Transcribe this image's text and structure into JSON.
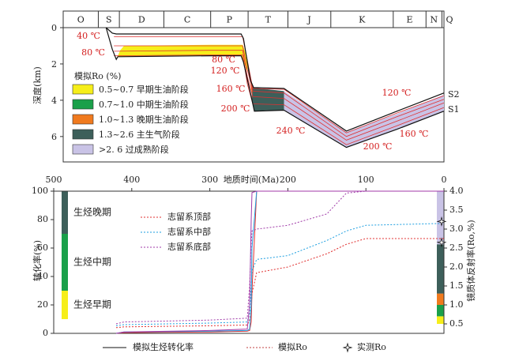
{
  "chart_data": [
    {
      "type": "burial",
      "ylabel": "深度(km)",
      "xlim": [
        488,
        0
      ],
      "ylim": [
        0,
        7.4
      ],
      "yticks": [
        0,
        2,
        4,
        6
      ],
      "periods": [
        {
          "name": "O",
          "start": 488,
          "end": 443
        },
        {
          "name": "S",
          "start": 443,
          "end": 416
        },
        {
          "name": "D",
          "start": 416,
          "end": 359
        },
        {
          "name": "C",
          "start": 359,
          "end": 299
        },
        {
          "name": "P",
          "start": 299,
          "end": 251
        },
        {
          "name": "T",
          "start": 251,
          "end": 200
        },
        {
          "name": "J",
          "start": 200,
          "end": 145
        },
        {
          "name": "K",
          "start": 145,
          "end": 65
        },
        {
          "name": "E",
          "start": 65,
          "end": 23
        },
        {
          "name": "N",
          "start": 23,
          "end": 2.6
        },
        {
          "name": "Q",
          "start": 2.6,
          "end": 0
        }
      ],
      "zones": [
        {
          "color": "#c9c3e6",
          "ma": [
            225,
            205,
            125,
            60,
            0,
            0,
            60,
            125,
            205,
            225
          ],
          "depth": [
            3.4,
            3.5,
            5.75,
            4.75,
            3.7,
            4.6,
            5.6,
            6.6,
            4.55,
            4.55
          ]
        },
        {
          "color": "#3d5f5a",
          "ma": [
            247,
            244,
            225,
            205,
            205,
            225,
            243,
            246
          ],
          "depth": [
            3.0,
            3.3,
            3.4,
            3.5,
            4.55,
            4.55,
            4.6,
            4.0
          ]
        },
        {
          "color": "#f07a1e",
          "ma": [
            249,
            247,
            246,
            245,
            247
          ],
          "depth": [
            2.6,
            3.0,
            3.3,
            3.9,
            3.4
          ]
        },
        {
          "color": "#1aa04a",
          "ma": [
            252,
            249,
            247,
            248,
            251
          ],
          "depth": [
            2.0,
            2.6,
            3.4,
            3.0,
            2.4
          ]
        },
        {
          "color": "#f6ee1a",
          "ma": [
            420,
            415,
            410,
            300,
            258,
            254,
            251,
            252,
            257,
            260,
            300,
            418
          ],
          "depth": [
            1.75,
            1.25,
            1.0,
            0.95,
            0.95,
            1.4,
            2.0,
            2.4,
            1.9,
            1.55,
            1.55,
            1.6
          ]
        }
      ],
      "outlines": [
        {
          "ma": [
            433,
            425,
            420,
            300,
            260,
            257,
            248,
            244,
            205,
            125,
            60,
            0
          ],
          "depth": [
            0,
            0.3,
            0.35,
            0.35,
            0.35,
            0.6,
            2.9,
            3.3,
            3.35,
            5.7,
            4.6,
            3.6
          ]
        },
        {
          "ma": [
            433,
            425,
            420,
            418,
            300,
            260,
            257,
            246,
            243,
            205,
            125,
            60,
            0
          ],
          "depth": [
            0,
            1.2,
            1.75,
            1.6,
            1.55,
            1.55,
            1.9,
            4.0,
            4.6,
            4.55,
            6.6,
            5.6,
            4.6
          ]
        }
      ],
      "isotherm_color": "#e03030",
      "isotherms": [
        {
          "ma": [
            423,
            300,
            258,
            252,
            245,
            205,
            125,
            60,
            0
          ],
          "depth": [
            0.5,
            0.5,
            0.5,
            1.8,
            3.35,
            3.4,
            5.8,
            4.7,
            3.75
          ]
        },
        {
          "ma": [
            423,
            300,
            258,
            252,
            245,
            205,
            125,
            60,
            0
          ],
          "depth": [
            1.0,
            1.0,
            1.0,
            2.3,
            3.5,
            3.6,
            6.0,
            4.9,
            3.95
          ]
        },
        {
          "ma": [
            423,
            300,
            258,
            252,
            245,
            205,
            125,
            60,
            0
          ],
          "depth": [
            1.3,
            1.25,
            1.25,
            2.7,
            3.8,
            3.9,
            6.2,
            5.15,
            4.15
          ]
        },
        {
          "ma": [
            423,
            300,
            258,
            252,
            245,
            205,
            125,
            60,
            0
          ],
          "depth": [
            1.55,
            1.5,
            1.5,
            3.1,
            4.2,
            4.25,
            6.45,
            5.4,
            4.4
          ]
        }
      ],
      "annotations": [
        "40 ℃",
        "80 ℃",
        "80 ℃",
        "120 ℃",
        "160 ℃",
        "200 ℃",
        "240 ℃",
        "200 ℃",
        "160 ℃",
        "120 ℃"
      ],
      "layer_labels": [
        "S2",
        "S1"
      ],
      "legend": {
        "title": "模拟Ro (%)",
        "items": [
          {
            "label": "0.5~0.7 早期生油阶段",
            "color": "#f6ee1a"
          },
          {
            "label": "0.7~1.0 中期生油阶段",
            "color": "#1aa04a"
          },
          {
            "label": "1.0~1.3 晚期生油阶段",
            "color": "#f07a1e"
          },
          {
            "label": "1.3~2.6 主生气阶段",
            "color": "#3d5f5a"
          },
          {
            "label": ">2. 6 过成熟阶段",
            "color": "#c9c3e6"
          }
        ]
      }
    },
    {
      "type": "line",
      "xlabel": "地质时间(Ma)",
      "ylabel": "转化率(%)",
      "y2label": "镜质体反射率(Ro,%)",
      "xlim": [
        500,
        0
      ],
      "xticks": [
        500,
        400,
        300,
        200,
        100,
        0
      ],
      "ylim": [
        0,
        100
      ],
      "yticks": [
        0,
        20,
        40,
        60,
        80,
        100
      ],
      "y2lim": [
        0.25,
        4.0
      ],
      "y2ticks": [
        0.5,
        {
          "value": 1,
          "label": "1.0"
        },
        1.5,
        {
          "value": 2,
          "label": "2.0"
        },
        2.5,
        {
          "value": 3,
          "label": "3.0"
        },
        3.5,
        {
          "value": 4,
          "label": "4.0"
        }
      ],
      "stage_bands": [
        {
          "label": "生烃早期",
          "range": [
            10,
            30
          ],
          "color": "#f6ee1a"
        },
        {
          "label": "生烃中期",
          "range": [
            30,
            70
          ],
          "color": "#1aa04a"
        },
        {
          "label": "生烃晚期",
          "range": [
            70,
            100
          ],
          "color": "#3d5f5a"
        }
      ],
      "ro_bands": [
        {
          "range": [
            0.5,
            0.7
          ],
          "color": "#f6ee1a"
        },
        {
          "range": [
            0.7,
            1.0
          ],
          "color": "#1aa04a"
        },
        {
          "range": [
            1.0,
            1.3
          ],
          "color": "#f07a1e"
        },
        {
          "range": [
            1.3,
            2.6
          ],
          "color": "#3d5f5a"
        },
        {
          "range": [
            2.6,
            4.0
          ],
          "color": "#c9c3e6"
        }
      ],
      "series": [
        {
          "name": "志留系顶部",
          "color": "#e03030",
          "x": [
            420,
            410,
            300,
            252,
            249,
            247,
            246,
            240,
            200,
            150,
            125,
            100,
            0
          ],
          "conversion": [
            0,
            0.5,
            1,
            1.5,
            2,
            8,
            30,
            100,
            100,
            100,
            100,
            100,
            100
          ],
          "ro": [
            0.4,
            0.42,
            0.45,
            0.47,
            0.6,
            0.9,
            1.3,
            1.85,
            2.0,
            2.35,
            2.6,
            2.75,
            2.75
          ]
        },
        {
          "name": "志留系中部",
          "color": "#1e9fe0",
          "x": [
            420,
            410,
            300,
            252,
            249,
            247,
            246,
            240,
            200,
            150,
            125,
            100,
            0
          ],
          "conversion": [
            0,
            1,
            1.5,
            2,
            3,
            20,
            60,
            100,
            100,
            100,
            100,
            100,
            100
          ],
          "ro": [
            0.45,
            0.48,
            0.52,
            0.55,
            0.8,
            1.5,
            1.9,
            2.2,
            2.3,
            2.7,
            2.95,
            3.1,
            3.15
          ]
        },
        {
          "name": "志留系底部",
          "color": "#a03aa8",
          "x": [
            420,
            410,
            300,
            252,
            249,
            247,
            246,
            240,
            200,
            150,
            125,
            100,
            0
          ],
          "conversion": [
            0,
            1,
            2,
            3,
            20,
            80,
            99,
            100,
            100,
            100,
            100,
            100,
            100
          ],
          "ro": [
            0.5,
            0.55,
            0.6,
            0.65,
            1.5,
            2.6,
            2.95,
            3.0,
            3.1,
            3.4,
            3.95,
            4.0,
            4.0
          ]
        }
      ],
      "measured_ro": {
        "x": [
          0,
          0
        ],
        "values": [
          3.2,
          2.65
        ]
      },
      "style_legend": {
        "conversion": "模拟生烃转化率",
        "ro": "模拟Ro",
        "measured": "实测Ro"
      }
    }
  ]
}
